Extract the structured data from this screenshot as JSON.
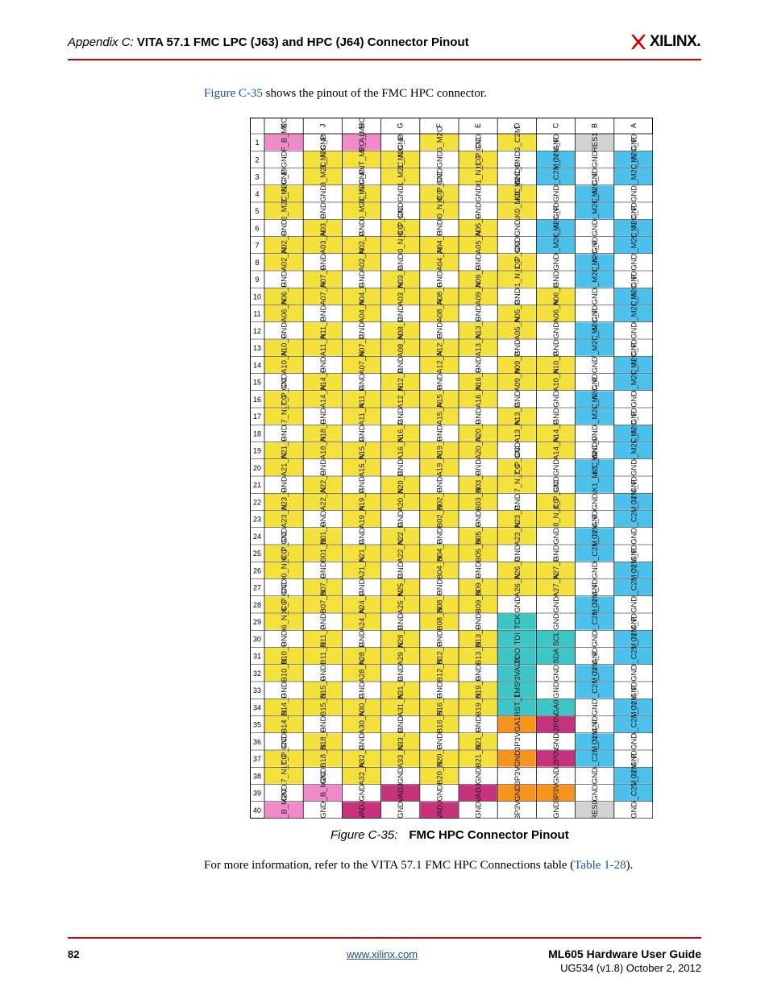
{
  "header": {
    "appendix": "Appendix C:",
    "title": "VITA 57.1 FMC LPC (J63) and HPC (J64) Connector Pinout",
    "logo_text": "XILINX."
  },
  "intro": {
    "link": "Figure C-35",
    "rest": " shows the pinout of the FMC HPC connector."
  },
  "figure": {
    "columns": [
      "K",
      "J",
      "H",
      "G",
      "F",
      "E",
      "D",
      "C",
      "B",
      "A"
    ],
    "rows": [
      "1",
      "2",
      "3",
      "4",
      "5",
      "6",
      "7",
      "8",
      "9",
      "10",
      "11",
      "12",
      "13",
      "14",
      "15",
      "16",
      "17",
      "18",
      "19",
      "20",
      "21",
      "22",
      "23",
      "24",
      "25",
      "26",
      "27",
      "28",
      "29",
      "30",
      "31",
      "32",
      "33",
      "34",
      "35",
      "36",
      "37",
      "38",
      "39",
      "40"
    ],
    "colors": {
      "P": "#f5e13b",
      "B": "#4cc1ec",
      "O": "#f7941d",
      "M": "#c7327e",
      "K": "#f08ac8",
      "T": "#3ec5c5",
      "G": "#d2d2d2",
      "W": "#ffffff"
    },
    "cells": {
      "K": [
        "VREF_B_M2C",
        "GND",
        "GND",
        "CLK2_M2C_P",
        "CLK2_M2C_N",
        "GND",
        "HA02_P",
        "HA02_N",
        "GND",
        "HA06_P",
        "HA06_N",
        "GND",
        "HA10_P",
        "HA10_N",
        "GND",
        "HA17_P_CC",
        "HA17_N_CC",
        "GND",
        "HA21_P",
        "HA21_N",
        "GND",
        "HA23_P",
        "HA23_N",
        "GND",
        "HB00_P_CC",
        "HB00_N_CC",
        "GND",
        "HB06_P_CC",
        "HB06_N_CC",
        "GND",
        "HB10_P",
        "HB10_N",
        "GND",
        "HB14_P",
        "HB14_N",
        "GND",
        "HB17_P_CC",
        "HB17_N_CC",
        "GND",
        "VIO_B_M2C"
      ],
      "J": [
        "GND",
        "CLK3_M2C_P",
        "CLK3_M2C_N",
        "GND",
        "GND",
        "HA03_P",
        "HA03_N",
        "GND",
        "HA07_P",
        "HA07_N",
        "GND",
        "HA11_P",
        "HA11_N",
        "GND",
        "HA14_P",
        "HA14_N",
        "GND",
        "HA18_P",
        "HA18_N",
        "GND",
        "HA22_P",
        "HA22_N",
        "GND",
        "HB01_P",
        "HB01_N",
        "GND",
        "HB07_P",
        "HB07_N",
        "GND",
        "HB11_P",
        "HB11_N",
        "GND",
        "HB15_P",
        "HB15_N",
        "GND",
        "HB18_P",
        "HB18_N",
        "GND",
        "VIO_B_M2C",
        "GND"
      ],
      "H": [
        "VREF_A_M2C",
        "PRSNT_M2C_L",
        "GND",
        "CLK0_M2C_P",
        "CLK0_M2C_N",
        "GND",
        "LA02_P",
        "LA02_N",
        "GND",
        "LA04_P",
        "LA04_N",
        "GND",
        "LA07_P",
        "LA07_N",
        "GND",
        "LA11_P",
        "LA11_N",
        "GND",
        "LA15_P",
        "LA15_N",
        "GND",
        "LA19_P",
        "LA19_N",
        "GND",
        "LA21_P",
        "LA21_N",
        "GND",
        "LA24_P",
        "LA24_N",
        "GND",
        "LA28_P",
        "LA28_N",
        "GND",
        "LA30_P",
        "LA30_N",
        "GND",
        "LA32_P",
        "LA32_N",
        "GND",
        "VADJ"
      ],
      "G": [
        "GND",
        "CLK1_M2C_P",
        "CLK1_M2C_N",
        "GND",
        "GND",
        "LA00_P_CC",
        "LA00_N_CC",
        "GND",
        "LA03_P",
        "LA03_N",
        "GND",
        "LA08_P",
        "LA08_N",
        "GND",
        "LA12_P",
        "LA12_N",
        "GND",
        "LA16_P",
        "LA16_N",
        "GND",
        "LA20_P",
        "LA20_N",
        "GND",
        "LA22_P",
        "LA22_N",
        "GND",
        "LA25_P",
        "LA25_N",
        "GND",
        "LA29_P",
        "LA29_N",
        "GND",
        "LA31_P",
        "LA31_N",
        "GND",
        "LA33_P",
        "LA33_N",
        "GND",
        "VADJ",
        "GND"
      ],
      "F": [
        "PG_M2C",
        "GND",
        "GND",
        "HA00_P_CC",
        "HA00_N_CC",
        "GND",
        "HA04_P",
        "HA04_N",
        "GND",
        "HA08_P",
        "HA08_N",
        "GND",
        "HA12_P",
        "HA12_N",
        "GND",
        "HA15_P",
        "HA15_N",
        "GND",
        "HA19_P",
        "HA19_N",
        "GND",
        "HB02_P",
        "HB02_N",
        "GND",
        "HB04_P",
        "HB04_N",
        "GND",
        "HB08_P",
        "HB08_N",
        "GND",
        "HB12_P",
        "HB12_N",
        "GND",
        "HB16_P",
        "HB16_N",
        "GND",
        "HB20_P",
        "HB20_N",
        "GND",
        "VADJ"
      ],
      "E": [
        "GND",
        "HA01_P_CC",
        "HA01_N_CC",
        "GND",
        "GND",
        "HA05_P",
        "HA05_N",
        "GND",
        "HA09_P",
        "HA09_N",
        "GND",
        "HA13_P",
        "HA13_N",
        "GND",
        "HA16_P",
        "HA16_N",
        "GND",
        "HA20_P",
        "HA20_N",
        "GND",
        "HB03_P",
        "HB03_N",
        "GND",
        "HB05_P",
        "HB05_N",
        "GND",
        "HB09_P",
        "HB09_N",
        "GND",
        "HB13_P",
        "HB13_N",
        "GND",
        "HB19_P",
        "HB19_N",
        "GND",
        "HB21_P",
        "HB21_N",
        "GND",
        "VADJ",
        "GND"
      ],
      "D": [
        "PG_C2M",
        "GND",
        "GND",
        "GBTCLK0_M2C_P",
        "GBTCLK0_M2C_N",
        "GND",
        "GND",
        "LA01_P_CC",
        "LA01_N_CC",
        "GND",
        "LA05_P",
        "LA05_N",
        "GND",
        "LA09_P",
        "LA09_N",
        "GND",
        "LA13_P",
        "LA13_N",
        "GND",
        "LA17_P_CC",
        "LA17_N_CC",
        "GND",
        "LA23_P",
        "LA23_N",
        "GND",
        "LA26_P",
        "LA26_N",
        "GND",
        "TCK",
        "TDI",
        "TDO",
        "3P3VAUX",
        "TMS",
        "TRST_L",
        "GA1",
        "3P3V",
        "GND",
        "3P3V",
        "GND",
        "3P3V"
      ],
      "C": [
        "GND",
        "DP0_C2M_P",
        "DP0_C2M_N",
        "GND",
        "GND",
        "DP0_M2C_P",
        "DP0_M2C_N",
        "GND",
        "GND",
        "LA06_P",
        "LA06_N",
        "GND",
        "GND",
        "LA10_P",
        "LA10_N",
        "GND",
        "GND",
        "LA14_P",
        "LA14_N",
        "GND",
        "GND",
        "LA18_P_CC",
        "LA18_N_CC",
        "GND",
        "GND",
        "LA27_P",
        "LA27_N",
        "GND",
        "GND",
        "SCL",
        "SDA",
        "GND",
        "GND",
        "GA0",
        "12P0V",
        "GND",
        "12P0V",
        "GND",
        "3P3V",
        "GND"
      ],
      "B": [
        "RES1",
        "GND",
        "GND",
        "DP9_M2C_P",
        "DP9_M2C_N",
        "GND",
        "GND",
        "DP8_M2C_P",
        "DP8_M2C_N",
        "GND",
        "GND",
        "DP7_M2C_P",
        "DP7_M2C_N",
        "GND",
        "GND",
        "DP6_M2C_P",
        "DP6_M2C_N",
        "GND",
        "GND",
        "GBTCLK1_M2C_P",
        "GBTCLK1_M2C_N",
        "GND",
        "GND",
        "DP9_C2M_P",
        "DP9_C2M_N",
        "GND",
        "GND",
        "DP8_C2M_P",
        "DP8_C2M_N",
        "GND",
        "GND",
        "DP7_C2M_P",
        "DP7_C2M_N",
        "GND",
        "GND",
        "DP6_C2M_P",
        "DP6_C2M_N",
        "GND",
        "GND",
        "RES0"
      ],
      "A": [
        "GND",
        "DP1_M2C_P",
        "DP1_M2C_N",
        "GND",
        "GND",
        "DP2_M2C_P",
        "DP2_M2C_N",
        "GND",
        "GND",
        "DP3_M2C_P",
        "DP3_M2C_N",
        "GND",
        "GND",
        "DP4_M2C_P",
        "DP4_M2C_N",
        "GND",
        "GND",
        "DP5_M2C_P",
        "DP5_M2C_N",
        "GND",
        "GND",
        "DP1_C2M_P",
        "DP1_C2M_N",
        "GND",
        "GND",
        "DP2_C2M_P",
        "DP2_C2M_N",
        "GND",
        "GND",
        "DP3_C2M_P",
        "DP3_C2M_N",
        "GND",
        "GND",
        "DP4_C2M_P",
        "DP4_C2M_N",
        "GND",
        "GND",
        "DP5_C2M_P",
        "DP5_C2M_N",
        "GND"
      ]
    },
    "fills": {
      "K": "KWWPPWPPWPPWPPWPPWPPWPPWPPWPPWPPWPPWPPWK",
      "J": "WPPWWPPWPPWPPWPPWPPWPPWPPWPPWPPWPPWPPWKW",
      "H": "KPWPPWPPWPPWPPWPPWPPWPPWPPWPPWPPWPPWPPWM",
      "G": "WPPWWPPWPPWPPWPPWPPWPPWPPWPPWPPWPPWPPWMW",
      "F": "PWWPPWPPWPPWPPWPPWPPWPPWPPWPPWPPWPPWPPWM",
      "E": "WPPWWPPWPPWPPWPPWPPWPPWPPWPPWPPWPPWPPWMW",
      "D": "PWWPPWWPPWPPWPPWPPWPPWPPWPPWTTTTTTOWOWOW",
      "C": "WBBWWBBWWPPWWPPWWPPWWPPWWPPWWTTWWTMWMWOW",
      "B": "GWWBBWWBBWWBBWWBBWWBBWWBBWWBBWWBBWWBBWWG",
      "A": "WBBWWBBWWBBWWBBWWBBWWBBWWBBWWBBWWBBWWBBW"
    }
  },
  "caption": {
    "number": "Figure C-35:",
    "title": "FMC HPC Connector Pinout"
  },
  "more_info": {
    "before": "For more information, refer to the VITA 57.1 FMC HPC Connections table (",
    "link": "Table 1-28",
    "after": ")."
  },
  "footer": {
    "page": "82",
    "site": "www.xilinx.com",
    "guide": "ML605 Hardware User Guide",
    "doc": "UG534 (v1.8) October 2, 2012"
  }
}
